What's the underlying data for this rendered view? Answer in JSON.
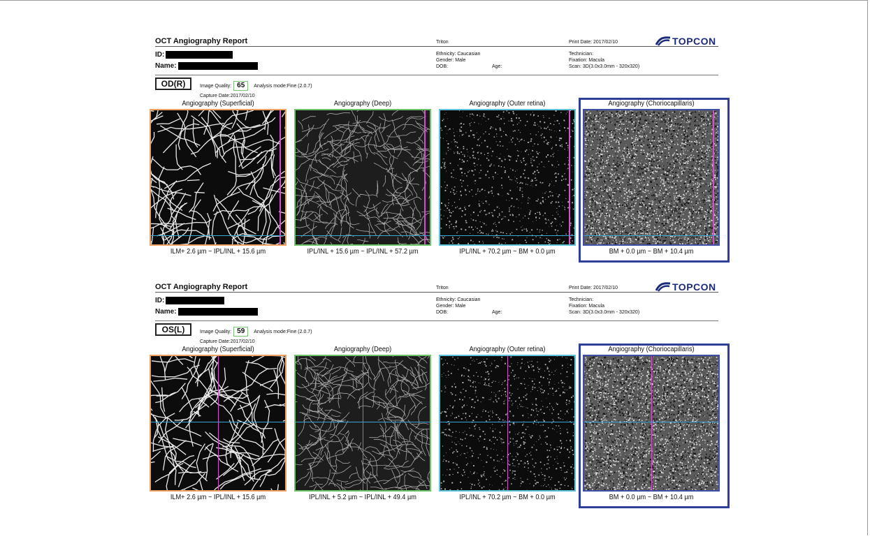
{
  "reports": [
    {
      "title": "OCT Angiography Report",
      "device": "Triton",
      "print_date": "Print Date: 2017/02/10",
      "logo": "TOPCON",
      "id_label": "ID:",
      "name_label": "Name:",
      "ethnicity": "Ethnicity: Caucasian",
      "gender": "Gender: Male",
      "dob": "DOB:",
      "age": "Age:",
      "technician": "Technician:",
      "fixation": "Fixation: Macula",
      "scan": "Scan: 3D(3.0x3.0mm - 320x320)",
      "eye": "OD(R)",
      "image_quality_label": "Image Quality:",
      "image_quality_value": "65",
      "analysis_mode": "Analysis mode:Fine (2.0.7)",
      "capture_date": "Capture Date:2017/02/10",
      "panels": [
        {
          "title": "Angiography (Superficial)",
          "caption": "ILM+ 2.6 µm ~ IPL/INL + 15.6 µm"
        },
        {
          "title": "Angiography (Deep)",
          "caption": "IPL/INL + 15.6 µm ~ IPL/INL + 57.2 µm"
        },
        {
          "title": "Angiography (Outer retina)",
          "caption": "IPL/INL + 70.2 µm ~ BM + 0.0 µm"
        },
        {
          "title": "Angiography (Choriocapillaris)",
          "caption": "BM + 0.0 µm ~ BM + 10.4 µm"
        }
      ]
    },
    {
      "title": "OCT Angiography Report",
      "device": "Triton",
      "print_date": "Print Date: 2017/02/10",
      "logo": "TOPCON",
      "id_label": "ID:",
      "name_label": "Name:",
      "ethnicity": "Ethnicity: Caucasian",
      "gender": "Gender: Male",
      "dob": "DOB:",
      "age": "Age:",
      "technician": "Technician:",
      "fixation": "Fixation: Macula",
      "scan": "Scan: 3D(3.0x3.0mm - 320x320)",
      "eye": "OS(L)",
      "image_quality_label": "Image Quality:",
      "image_quality_value": "59",
      "analysis_mode": "Analysis mode:Fine (2.0.7)",
      "capture_date": "Capture Date:2017/02/10",
      "panels": [
        {
          "title": "Angiography (Superficial)",
          "caption": "ILM+ 2.6 µm ~ IPL/INL + 15.6 µm"
        },
        {
          "title": "Angiography (Deep)",
          "caption": "IPL/INL + 5.2 µm ~ IPL/INL + 49.4 µm"
        },
        {
          "title": "Angiography (Outer retina)",
          "caption": "IPL/INL + 70.2 µm ~ BM + 0.0 µm"
        },
        {
          "title": "Angiography (Choriocapillaris)",
          "caption": "BM + 0.0 µm ~ BM + 10.4 µm"
        }
      ]
    }
  ],
  "colors": {
    "superficial_border": "#f0a061",
    "deep_border": "#6cc36a",
    "outer_border": "#5ec3d6",
    "choriocapillaris_border": "#3f4fa8",
    "highlight_box": "#2e3f99",
    "quality_box": "#7cc27a",
    "logo": "#1b2a7a"
  }
}
